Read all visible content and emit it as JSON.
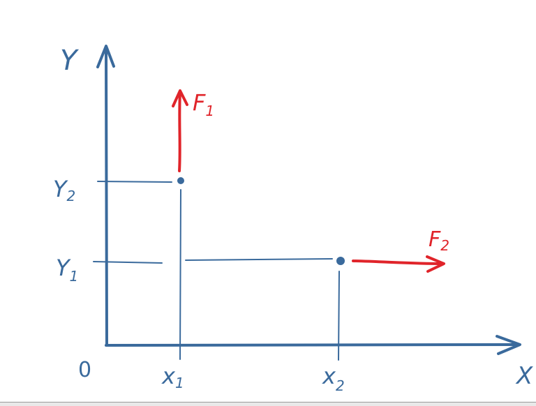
{
  "diagram": {
    "axes": {
      "x_label": "X",
      "y_label": "Y",
      "origin_label": "0"
    },
    "points": [
      {
        "x_label": "x",
        "x_sub": "1",
        "y_label": "Y",
        "y_sub": "2"
      },
      {
        "x_label": "x",
        "x_sub": "2",
        "y_label": "Y",
        "y_sub": "1"
      }
    ],
    "forces": [
      {
        "label": "F",
        "sub": "1",
        "direction": "up"
      },
      {
        "label": "F",
        "sub": "2",
        "direction": "right"
      }
    ],
    "colors": {
      "axes": "#3a6a9c",
      "force": "#e0242a"
    }
  }
}
